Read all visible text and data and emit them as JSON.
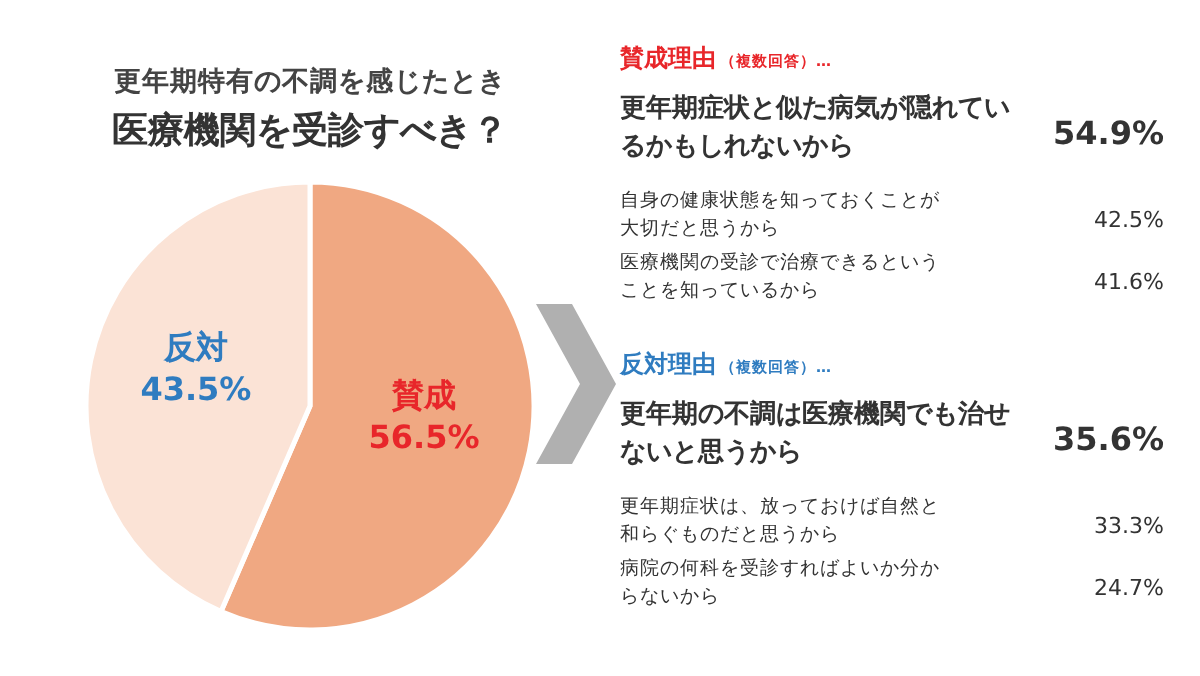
{
  "chart_data": [
    {
      "type": "pie",
      "title": "更年期特有の不調を感じたとき",
      "subtitle": "医療機関を受診すべき？",
      "categories": [
        "賛成",
        "反対"
      ],
      "values": [
        56.5,
        43.5
      ],
      "value_labels": [
        "56.5%",
        "43.5%"
      ],
      "colors": [
        "#f0a882",
        "#fbe3d6"
      ]
    },
    {
      "type": "other",
      "title": "賛成理由",
      "subtitle": "（複数回答）…",
      "categories": [
        "更年期症状と似た病気が隠れているかもしれないから",
        "自身の健康状態を知っておくことが大切だと思うから",
        "医療機関の受診で治療できるということを知っているから"
      ],
      "value_labels": [
        "54.9%",
        "42.5%",
        "41.6%"
      ]
    },
    {
      "type": "other",
      "title": "反対理由",
      "subtitle": "（複数回答）…",
      "categories": [
        "更年期の不調は医療機関でも治せないと思うから",
        "更年期症状は、放っておけば自然と和らぐものだと思うから",
        "病院の何科を受診すればよいか分からないから"
      ],
      "value_labels": [
        "35.6%",
        "33.3%",
        "24.7%"
      ]
    }
  ]
}
